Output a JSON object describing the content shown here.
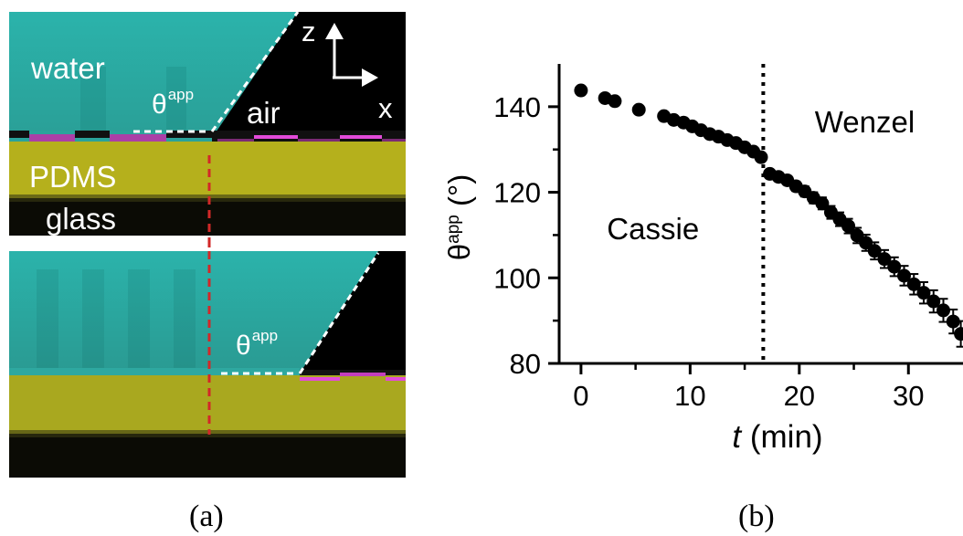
{
  "panel_a": {
    "labels": {
      "water": "water",
      "air": "air",
      "pdms": "PDMS",
      "glass": "glass",
      "theta_symbol": "θ",
      "theta_sup": "app",
      "axis_z": "z",
      "axis_x": "x"
    },
    "colors": {
      "water": "#2fb8b0",
      "air": "#000000",
      "pdms": "#b7b21c",
      "glass": "#0a0a06",
      "interface": "#d63bd1",
      "dashed_line": "#d22828"
    },
    "caption": "(a)"
  },
  "panel_b": {
    "caption": "(b)"
  },
  "chart_data": {
    "type": "scatter",
    "xlabel_italic": "t",
    "xlabel_rest": " (min)",
    "ylabel_symbol": "θ",
    "ylabel_sup": "app",
    "ylabel_unit": " (°)",
    "xlim": [
      -2,
      35
    ],
    "ylim": [
      80,
      150
    ],
    "xticks": [
      0,
      10,
      20,
      30
    ],
    "yticks": [
      80,
      100,
      120,
      140
    ],
    "transition_x": 16.7,
    "annotations": [
      {
        "text": "Cassie",
        "x": 6.6,
        "y": 109
      },
      {
        "text": "Wenzel",
        "x": 26,
        "y": 134
      }
    ],
    "x": [
      0,
      2.2,
      3.1,
      5.3,
      7.6,
      8.5,
      9.4,
      10.2,
      11.0,
      11.8,
      12.6,
      13.4,
      14.2,
      15.0,
      15.8,
      16.5,
      17.3,
      18.1,
      18.9,
      19.7,
      20.5,
      21.3,
      22.1,
      22.9,
      23.7,
      24.5,
      25.3,
      26.1,
      26.9,
      27.8,
      28.7,
      29.6,
      30.5,
      31.4,
      32.3,
      33.2,
      34.1,
      34.8
    ],
    "y": [
      143.8,
      142.0,
      141.3,
      139.3,
      137.8,
      136.9,
      136.3,
      135.4,
      134.5,
      133.6,
      133.0,
      132.2,
      131.5,
      130.5,
      129.5,
      128.2,
      124.3,
      123.6,
      122.8,
      121.4,
      120.2,
      118.7,
      117.4,
      115.3,
      113.7,
      112.1,
      109.9,
      108.2,
      106.3,
      104.4,
      102.6,
      100.5,
      98.5,
      96.5,
      94.5,
      92.4,
      89.8,
      86.9
    ],
    "error": [
      0,
      0,
      0,
      0,
      0,
      0,
      0,
      0,
      0,
      0,
      0,
      0,
      0,
      0,
      0,
      0.8,
      0.9,
      1.0,
      1.0,
      1.1,
      1.2,
      1.3,
      1.4,
      1.5,
      1.6,
      1.7,
      1.8,
      1.9,
      2.0,
      2.1,
      2.2,
      2.3,
      2.4,
      2.5,
      2.6,
      2.7,
      2.8,
      3.0
    ]
  }
}
